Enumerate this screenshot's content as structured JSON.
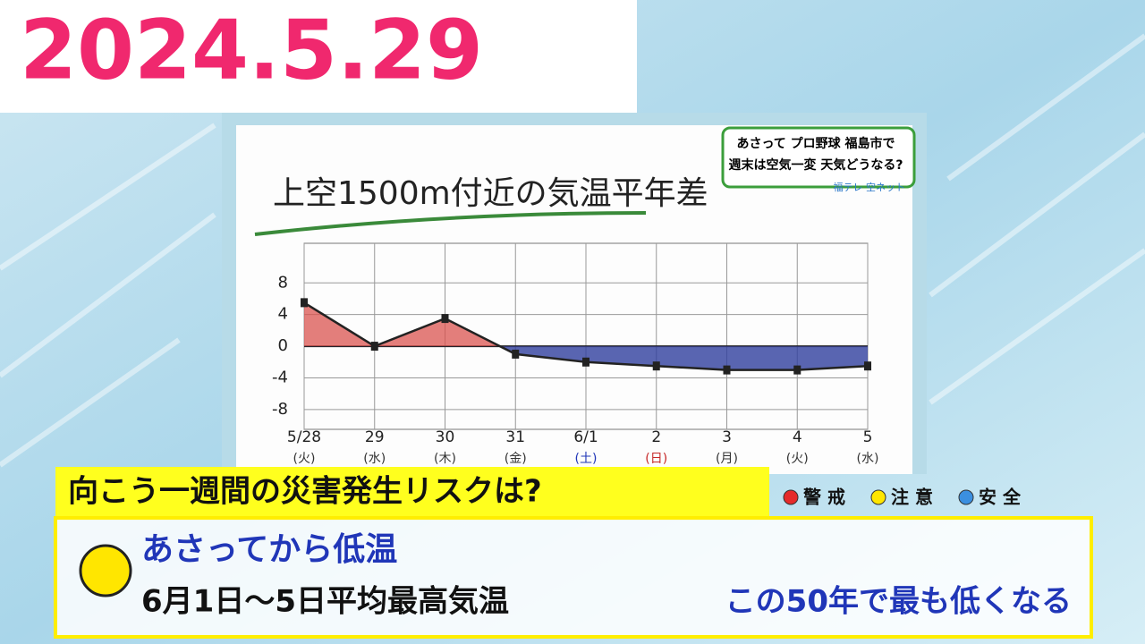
{
  "header": {
    "date": "2024.5.29"
  },
  "badge": {
    "lines": [
      "あさって プロ野球 福島市で",
      "週末は空気一変 天気どうなる?"
    ],
    "logo": "福テレ 空ネット"
  },
  "chart_data": {
    "type": "line",
    "title": "上空1500m付近の気温平年差",
    "categories": [
      "5/28",
      "29",
      "30",
      "31",
      "6/1",
      "2",
      "3",
      "4",
      "5"
    ],
    "weekdays": [
      "(火)",
      "(水)",
      "(木)",
      "(金)",
      "(土)",
      "(日)",
      "(月)",
      "(火)",
      "(水)"
    ],
    "values": [
      5.5,
      0,
      3.5,
      -1,
      -2,
      -2.5,
      -3,
      -3,
      -2.5
    ],
    "color": "#222222",
    "positive_color": "#d9534f",
    "negative_color": "#2f3f9e",
    "ylim": [
      -10.5,
      13
    ],
    "yticks": [
      8,
      4,
      0,
      -4,
      -8
    ],
    "grid": true
  },
  "risk": {
    "question": "向こう一週間の災害発生リスクは?",
    "legend": [
      {
        "label": "警 戒",
        "color": "#e52b2b"
      },
      {
        "label": "注 意",
        "color": "#ffe600"
      },
      {
        "label": "安 全",
        "color": "#3b8fe0"
      }
    ],
    "level_color": "#ffe600",
    "headline": "あさってから低温",
    "detail": "6月1日～5日平均最高気温",
    "detail_emphasis": "この50年で最も低くなる"
  }
}
